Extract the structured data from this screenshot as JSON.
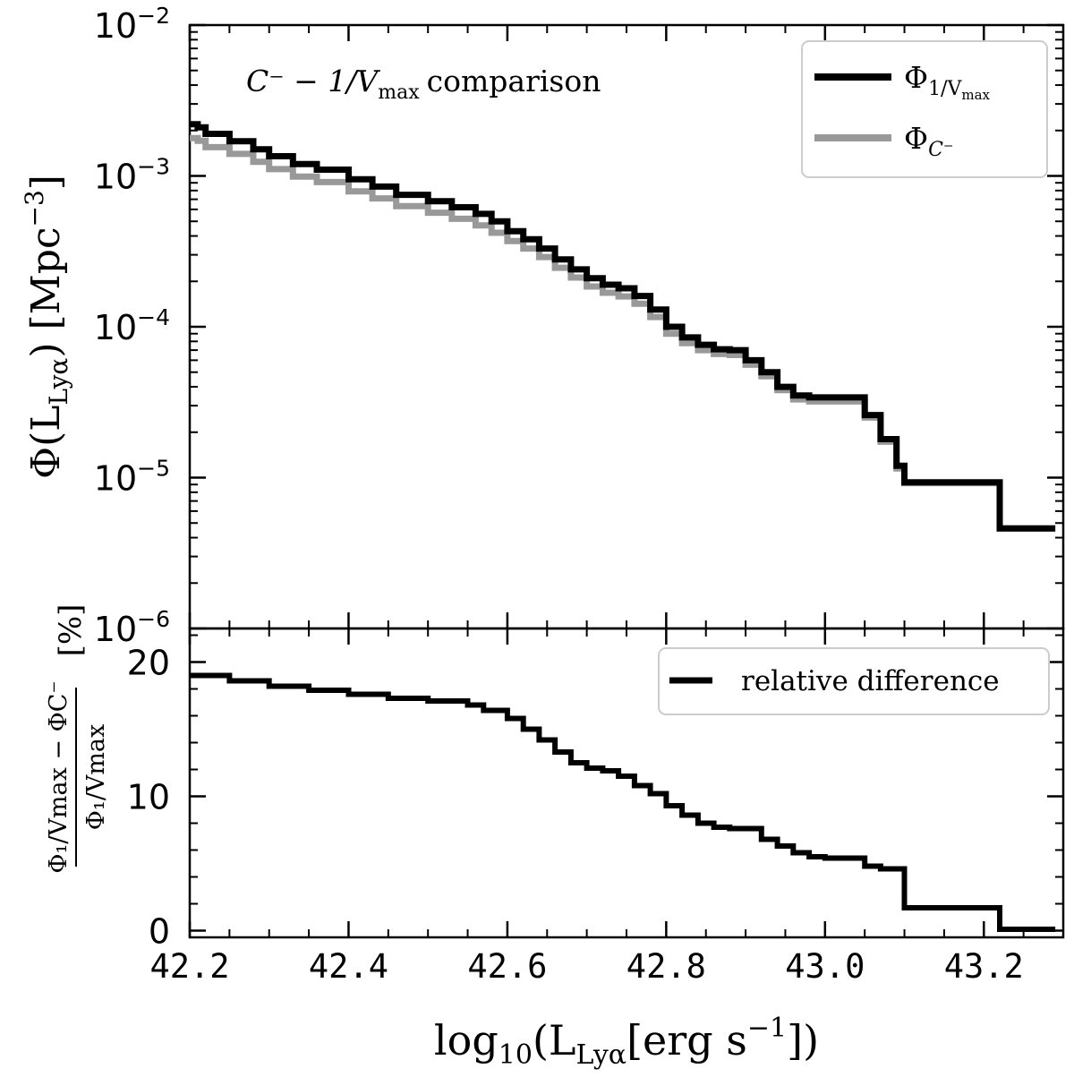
{
  "chart_data": [
    {
      "type": "line",
      "panel": "top",
      "yscale": "log",
      "annotation": "C⁻ − 1/V",
      "annotation_sub": "max",
      "annotation_tail": "comparison",
      "ylabel": "Φ(L",
      "ylabel_sub": "Lyα",
      "ylabel_tail": ") [Mpc",
      "ylabel_sup": "−3",
      "ylabel_end": "]",
      "xlim": [
        42.2,
        43.3
      ],
      "ylim": [
        1e-06,
        0.01
      ],
      "y_ticks": [
        {
          "value": 0.01,
          "base": "10",
          "exp": "−2"
        },
        {
          "value": 0.001,
          "base": "10",
          "exp": "−3"
        },
        {
          "value": 0.0001,
          "base": "10",
          "exp": "−4"
        },
        {
          "value": 1e-05,
          "base": "10",
          "exp": "−5"
        },
        {
          "value": 1e-06,
          "base": "10",
          "exp": "−6"
        }
      ],
      "legend_position": "upper right",
      "series": [
        {
          "name": "Φ",
          "name_sub": "1/V",
          "name_subsub": "max",
          "color": "#000000",
          "x": [
            42.2,
            42.21,
            42.22,
            42.25,
            42.28,
            42.3,
            42.33,
            42.36,
            42.4,
            42.43,
            42.46,
            42.5,
            42.53,
            42.56,
            42.58,
            42.6,
            42.62,
            42.64,
            42.66,
            42.68,
            42.7,
            42.72,
            42.74,
            42.76,
            42.78,
            42.8,
            42.82,
            42.84,
            42.86,
            42.88,
            42.9,
            42.92,
            42.94,
            42.96,
            42.98,
            43.0,
            43.02,
            43.05,
            43.07,
            43.09,
            43.1,
            43.13,
            43.16,
            43.19,
            43.22,
            43.26,
            43.29
          ],
          "y": [
            0.0022,
            0.0021,
            0.0019,
            0.0017,
            0.0015,
            0.00135,
            0.0012,
            0.0011,
            0.00095,
            0.00085,
            0.00075,
            0.00068,
            0.00062,
            0.00056,
            0.0005,
            0.00043,
            0.00038,
            0.00033,
            0.00028,
            0.00024,
            0.00021,
            0.00019,
            0.00018,
            0.00016,
            0.00013,
            0.0001,
            8.5e-05,
            7.6e-05,
            7.1e-05,
            7e-05,
            6e-05,
            5e-05,
            4e-05,
            3.5e-05,
            3.4e-05,
            3.4e-05,
            3.4e-05,
            2.6e-05,
            1.8e-05,
            1.2e-05,
            9.3e-06,
            9.3e-06,
            9.3e-06,
            9.3e-06,
            4.6e-06,
            4.6e-06,
            4.6e-06
          ]
        },
        {
          "name": "Φ",
          "name_sub": "C⁻",
          "name_subsub": "",
          "color": "#999999",
          "x": [
            42.2,
            42.21,
            42.22,
            42.25,
            42.28,
            42.3,
            42.33,
            42.36,
            42.4,
            42.43,
            42.46,
            42.5,
            42.53,
            42.56,
            42.58,
            42.6,
            42.62,
            42.64,
            42.66,
            42.68,
            42.7,
            42.72,
            42.74,
            42.76,
            42.78,
            42.8,
            42.82,
            42.84,
            42.86,
            42.88,
            42.9,
            42.92,
            42.94,
            42.96,
            42.98,
            43.0,
            43.02,
            43.05,
            43.07,
            43.09,
            43.1,
            43.13,
            43.16,
            43.19,
            43.22,
            43.26,
            43.29
          ],
          "y": [
            0.00178,
            0.00171,
            0.00155,
            0.0014,
            0.00124,
            0.00111,
            0.00099,
            0.00091,
            0.00079,
            0.00071,
            0.00063,
            0.00057,
            0.00052,
            0.00047,
            0.00042,
            0.00037,
            0.00033,
            0.00029,
            0.000246,
            0.000212,
            0.000185,
            0.000168,
            0.000159,
            0.000142,
            0.000116,
            9e-05,
            7.8e-05,
            7e-05,
            6.6e-05,
            6.5e-05,
            5.6e-05,
            4.7e-05,
            3.8e-05,
            3.3e-05,
            3.2e-05,
            3.2e-05,
            3.2e-05,
            2.5e-05,
            1.73e-05,
            1.15e-05,
            9.2e-06,
            9.2e-06,
            9.2e-06,
            9.2e-06,
            4.6e-06,
            4.6e-06,
            4.6e-06
          ]
        }
      ]
    },
    {
      "type": "line",
      "panel": "bottom",
      "xlim": [
        42.2,
        43.3
      ],
      "ylim": [
        -0.5,
        22.5
      ],
      "xlabel": "log",
      "xlabel_sub": "10",
      "xlabel_tail": "(L",
      "xlabel_sub2": "Lyα",
      "xlabel_tail2": "[erg s",
      "xlabel_sup": "−1",
      "xlabel_end": "])",
      "ylabel_frac_num": "Φ₁/Vmax − ΦC⁻",
      "ylabel_frac_den": "Φ₁/Vmax",
      "ylabel_unit": "[%]",
      "x_ticks": [
        "42.2",
        "42.4",
        "42.6",
        "42.8",
        "43.0",
        "43.2"
      ],
      "x_tick_values": [
        42.2,
        42.4,
        42.6,
        42.8,
        43.0,
        43.2
      ],
      "y_ticks": [
        "0",
        "10",
        "20"
      ],
      "y_tick_values": [
        0,
        10,
        20
      ],
      "legend_position": "upper right",
      "series": [
        {
          "name": "relative difference",
          "color": "#000000",
          "x": [
            42.2,
            42.25,
            42.3,
            42.35,
            42.4,
            42.45,
            42.5,
            42.55,
            42.57,
            42.6,
            42.62,
            42.64,
            42.66,
            42.68,
            42.7,
            42.72,
            42.74,
            42.76,
            42.78,
            42.8,
            42.82,
            42.84,
            42.86,
            42.88,
            42.9,
            42.92,
            42.94,
            42.96,
            42.98,
            43.0,
            43.02,
            43.05,
            43.07,
            43.09,
            43.1,
            43.15,
            43.2,
            43.22,
            43.25,
            43.29
          ],
          "y": [
            19.0,
            18.6,
            18.2,
            17.9,
            17.6,
            17.3,
            17.1,
            16.8,
            16.4,
            15.8,
            15.0,
            14.2,
            13.3,
            12.5,
            12.1,
            11.9,
            11.5,
            10.8,
            10.2,
            9.3,
            8.6,
            8.0,
            7.7,
            7.6,
            7.6,
            6.8,
            6.3,
            5.8,
            5.5,
            5.4,
            5.4,
            4.8,
            4.6,
            4.6,
            1.7,
            1.7,
            1.7,
            0.1,
            0.1,
            0.1
          ]
        }
      ]
    }
  ]
}
